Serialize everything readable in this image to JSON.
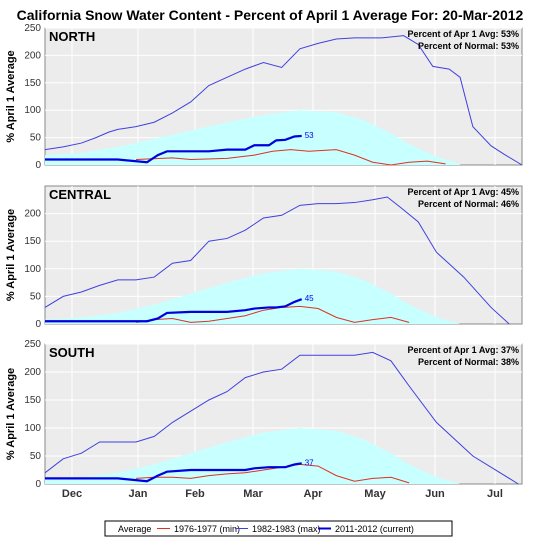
{
  "title": "California Snow Water Content - Percent of April 1 Average For: 20-Mar-2012",
  "y_axis_label": "% April 1 Average",
  "colors": {
    "average_fill": "#c8ffff",
    "min_line": "#e03020",
    "max_line": "#4040e0",
    "current_line": "#0000dd",
    "plot_bg": "#ececec",
    "grid": "#ffffff"
  },
  "legend": {
    "average": "Average",
    "min": "1976-1977 (min)",
    "max": "1982-1983 (max)",
    "current": "2011-2012 (current)"
  },
  "chart_data": [
    {
      "type": "line",
      "region": "NORTH",
      "stat_line_1": "Percent of Apr 1 Avg: 53%",
      "stat_line_2": "Percent of Normal: 53%",
      "current_label": "53",
      "x_ticks": [
        "Dec",
        "Jan",
        "Feb",
        "Mar",
        "Apr",
        "May",
        "Jun",
        "Jul"
      ],
      "y_ticks": [
        "0",
        "50",
        "100",
        "150",
        "200",
        "250"
      ],
      "ylim": [
        0,
        250
      ],
      "series": [
        {
          "name": "Average",
          "x": [
            0,
            20,
            40,
            60,
            80,
            100,
            120,
            140,
            160,
            175,
            190,
            200,
            215,
            228
          ],
          "values": [
            18,
            22,
            33,
            48,
            63,
            78,
            91,
            100,
            96,
            82,
            58,
            38,
            15,
            2
          ]
        },
        {
          "name": "1976-1977 (min)",
          "x": [
            50,
            70,
            80,
            100,
            115,
            125,
            135,
            145,
            160,
            170,
            180,
            190,
            200,
            210,
            220
          ],
          "values": [
            10,
            13,
            10,
            12,
            18,
            25,
            28,
            25,
            28,
            18,
            5,
            0,
            5,
            7,
            2
          ]
        },
        {
          "name": "1982-1983 (max)",
          "x": [
            0,
            10,
            20,
            28,
            35,
            40,
            50,
            60,
            70,
            80,
            90,
            100,
            110,
            120,
            130,
            140,
            150,
            160,
            170,
            185,
            197,
            205,
            213,
            222,
            228,
            235,
            245,
            252,
            262
          ],
          "values": [
            28,
            33,
            40,
            50,
            60,
            65,
            70,
            78,
            95,
            115,
            145,
            160,
            175,
            187,
            178,
            212,
            222,
            230,
            232,
            232,
            236,
            220,
            180,
            175,
            160,
            70,
            35,
            20,
            0
          ]
        },
        {
          "name": "2011-2012 (current)",
          "x": [
            0,
            20,
            40,
            56,
            62,
            67,
            80,
            90,
            100,
            110,
            115,
            123,
            127,
            132,
            137,
            141
          ],
          "values": [
            10,
            10,
            10,
            5,
            18,
            25,
            25,
            25,
            28,
            28,
            36,
            36,
            45,
            46,
            52,
            53
          ]
        }
      ]
    },
    {
      "type": "line",
      "region": "CENTRAL",
      "stat_line_1": "Percent of Apr 1 Avg: 45%",
      "stat_line_2": "Percent of Normal: 46%",
      "current_label": "45",
      "x_ticks": [
        "Dec",
        "Jan",
        "Feb",
        "Mar",
        "Apr",
        "May",
        "Jun",
        "Jul"
      ],
      "y_ticks": [
        "0",
        "50",
        "100",
        "150",
        "200"
      ],
      "ylim": [
        0,
        250
      ],
      "series": [
        {
          "name": "Average",
          "x": [
            0,
            20,
            40,
            60,
            80,
            100,
            120,
            140,
            160,
            175,
            190,
            200,
            215,
            228
          ],
          "values": [
            8,
            12,
            20,
            35,
            55,
            75,
            92,
            100,
            95,
            80,
            55,
            35,
            12,
            0
          ]
        },
        {
          "name": "1976-1977 (min)",
          "x": [
            50,
            60,
            70,
            80,
            90,
            100,
            110,
            120,
            130,
            140,
            150,
            160,
            170,
            180,
            190,
            200
          ],
          "values": [
            3,
            8,
            10,
            3,
            5,
            10,
            15,
            25,
            30,
            32,
            28,
            12,
            3,
            8,
            12,
            3
          ]
        },
        {
          "name": "1982-1983 (max)",
          "x": [
            0,
            10,
            20,
            30,
            40,
            50,
            60,
            70,
            80,
            90,
            100,
            110,
            120,
            130,
            140,
            150,
            160,
            170,
            180,
            188,
            195,
            205,
            215,
            230,
            245,
            255
          ],
          "values": [
            30,
            50,
            58,
            70,
            80,
            80,
            85,
            110,
            115,
            150,
            155,
            170,
            192,
            197,
            215,
            218,
            218,
            220,
            225,
            230,
            212,
            185,
            130,
            85,
            30,
            0
          ]
        },
        {
          "name": "2011-2012 (current)",
          "x": [
            0,
            20,
            40,
            56,
            62,
            67,
            80,
            90,
            100,
            110,
            115,
            123,
            127,
            132,
            137,
            141
          ],
          "values": [
            5,
            5,
            5,
            5,
            10,
            20,
            22,
            22,
            22,
            25,
            28,
            30,
            30,
            32,
            40,
            45
          ]
        }
      ]
    },
    {
      "type": "line",
      "region": "SOUTH",
      "stat_line_1": "Percent of Apr 1 Avg: 37%",
      "stat_line_2": "Percent of Normal: 38%",
      "current_label": "37",
      "x_ticks": [
        "Dec",
        "Jan",
        "Feb",
        "Mar",
        "Apr",
        "May",
        "Jun",
        "Jul"
      ],
      "y_ticks": [
        "0",
        "50",
        "100",
        "150",
        "200",
        "250"
      ],
      "ylim": [
        0,
        250
      ],
      "series": [
        {
          "name": "Average",
          "x": [
            0,
            20,
            40,
            60,
            80,
            100,
            120,
            140,
            160,
            175,
            190,
            200,
            215,
            228
          ],
          "values": [
            8,
            12,
            20,
            35,
            55,
            75,
            92,
            100,
            95,
            80,
            55,
            35,
            12,
            0
          ]
        },
        {
          "name": "1976-1977 (min)",
          "x": [
            50,
            60,
            70,
            80,
            90,
            100,
            110,
            120,
            130,
            140,
            150,
            160,
            170,
            180,
            190,
            200
          ],
          "values": [
            10,
            12,
            12,
            10,
            15,
            18,
            20,
            25,
            30,
            35,
            32,
            15,
            5,
            10,
            12,
            2
          ]
        },
        {
          "name": "1982-1983 (max)",
          "x": [
            0,
            10,
            20,
            30,
            40,
            50,
            60,
            70,
            80,
            90,
            100,
            110,
            120,
            130,
            140,
            150,
            160,
            170,
            180,
            190,
            200,
            215,
            235,
            260
          ],
          "values": [
            20,
            45,
            55,
            75,
            75,
            75,
            85,
            110,
            130,
            150,
            165,
            190,
            200,
            205,
            230,
            230,
            230,
            230,
            235,
            220,
            175,
            110,
            50,
            0
          ]
        },
        {
          "name": "2011-2012 (current)",
          "x": [
            0,
            20,
            40,
            56,
            62,
            67,
            80,
            90,
            100,
            110,
            115,
            123,
            127,
            132,
            137,
            141
          ],
          "values": [
            10,
            10,
            10,
            5,
            15,
            22,
            25,
            25,
            25,
            25,
            28,
            30,
            30,
            30,
            35,
            37
          ]
        }
      ]
    }
  ]
}
